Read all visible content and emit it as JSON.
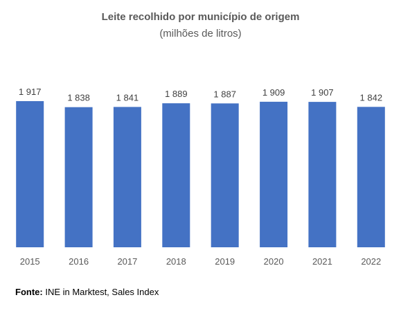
{
  "chart_data": {
    "type": "bar",
    "title": "Leite recolhido por município de origem",
    "subtitle": "(milhões de litros)",
    "categories": [
      "2015",
      "2016",
      "2017",
      "2018",
      "2019",
      "2020",
      "2021",
      "2022"
    ],
    "values": [
      1917,
      1838,
      1841,
      1889,
      1887,
      1909,
      1907,
      1842
    ],
    "value_labels": [
      "1 917",
      "1 838",
      "1 841",
      "1 889",
      "1 887",
      "1 909",
      "1 907",
      "1 842"
    ],
    "xlabel": "",
    "ylabel": "",
    "ylim": [
      0,
      1917
    ],
    "grid": false,
    "legend": "none",
    "bar_color": "#4472C4"
  },
  "source": {
    "label": "Fonte:",
    "text": " INE in Marktest, Sales Index"
  }
}
